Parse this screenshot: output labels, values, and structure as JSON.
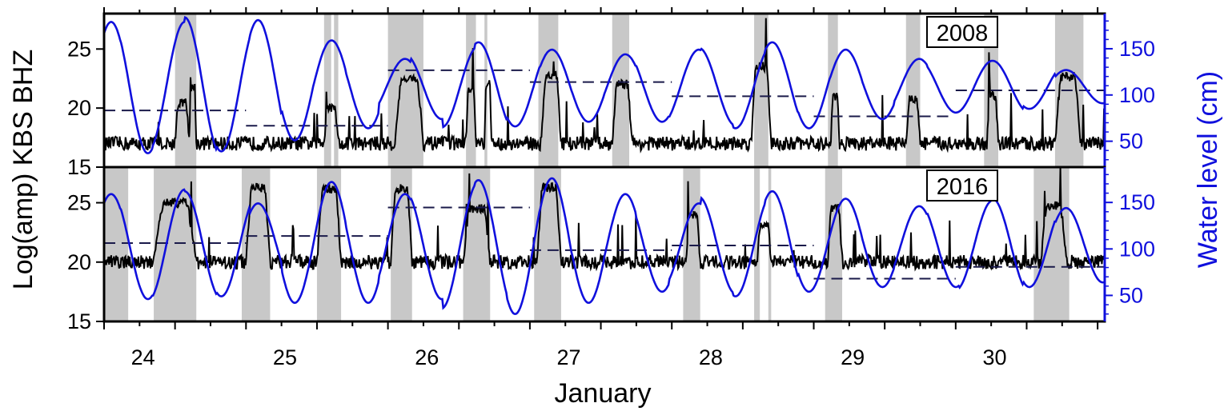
{
  "chart_data": {
    "type": "line",
    "xlabel": "January",
    "ylabel_left": "Log(amp) KBS BHZ",
    "ylabel_right": "Water level (cm)",
    "x_range": [
      23.5,
      30.55
    ],
    "x_ticks": [
      24,
      25,
      26,
      27,
      28,
      29,
      30
    ],
    "series_colors": {
      "seismic": "#000000",
      "water": "#1010dd",
      "shade": "#c8c8c8"
    },
    "panels": [
      {
        "year_label": "2008",
        "ylim_left": [
          15,
          28
        ],
        "ylim_right": [
          22,
          188
        ],
        "left_ticks": [
          15,
          20,
          25
        ],
        "right_ticks": [
          50,
          100,
          150
        ],
        "tide": {
          "mean": 109,
          "amp": [
            70,
            72,
            70,
            75,
            70,
            72,
            58,
            50,
            45,
            30,
            35,
            44,
            48,
            43,
            40,
            38,
            35,
            38,
            40,
            42,
            45,
            48,
            45,
            40,
            35,
            30,
            28,
            28,
            28,
            24,
            18
          ]
        },
        "high_tides": [
          23.55,
          24.05,
          24.6,
          25.12,
          25.66,
          26.15,
          26.66,
          27.16,
          27.66,
          28.16,
          28.68,
          29.2,
          29.72,
          30.25
        ],
        "shaded": [
          [
            24.0,
            24.15
          ],
          [
            25.05,
            25.1
          ],
          [
            25.12,
            25.15
          ],
          [
            25.5,
            25.75
          ],
          [
            26.05,
            26.12
          ],
          [
            26.18,
            26.2
          ],
          [
            26.56,
            26.7
          ],
          [
            27.08,
            27.2
          ],
          [
            28.08,
            28.18
          ],
          [
            28.6,
            28.67
          ],
          [
            29.15,
            29.25
          ],
          [
            29.7,
            29.8
          ],
          [
            30.2,
            30.4
          ]
        ],
        "events": [
          {
            "start": 24.0,
            "end": 24.1,
            "level": 20.5
          },
          {
            "start": 24.1,
            "end": 24.15,
            "level": 21.8
          },
          {
            "start": 25.05,
            "end": 25.15,
            "level": 20
          },
          {
            "start": 25.55,
            "end": 25.75,
            "level": 22.5
          },
          {
            "start": 26.05,
            "end": 26.12,
            "level": 21.5
          },
          {
            "start": 26.18,
            "end": 26.23,
            "level": 22
          },
          {
            "start": 26.58,
            "end": 26.72,
            "level": 22.7
          },
          {
            "start": 27.08,
            "end": 27.22,
            "level": 22
          },
          {
            "start": 28.06,
            "end": 28.2,
            "level": 23.5
          },
          {
            "start": 28.62,
            "end": 28.68,
            "level": 21
          },
          {
            "start": 29.15,
            "end": 29.25,
            "level": 20.7
          },
          {
            "start": 29.72,
            "end": 29.8,
            "level": 21
          },
          {
            "start": 30.2,
            "end": 30.38,
            "level": 22.6
          }
        ],
        "baseline": 17,
        "dashed_segments": [
          {
            "x": [
              23.5,
              24.5
            ],
            "y": 19.8
          },
          {
            "x": [
              24.5,
              25.5
            ],
            "y": 18.5
          },
          {
            "x": [
              25.5,
              26.5
            ],
            "y": 23.2
          },
          {
            "x": [
              26.5,
              27.5
            ],
            "y": 22.2
          },
          {
            "x": [
              27.5,
              28.5
            ],
            "y": 21
          },
          {
            "x": [
              28.5,
              29.45
            ],
            "y": 19.3
          },
          {
            "x": [
              29.5,
              30.55
            ],
            "y": 21.5
          }
        ]
      },
      {
        "year_label": "2016",
        "ylim_left": [
          15,
          28
        ],
        "ylim_right": [
          22,
          188
        ],
        "left_ticks": [
          15,
          20,
          25
        ],
        "right_ticks": [
          50,
          100,
          150
        ],
        "tide": {
          "mean": 104,
          "amp": [
            55,
            58,
            60,
            58,
            55,
            45,
            62,
            68,
            62,
            55,
            58,
            68,
            70,
            74,
            72,
            62,
            55,
            50,
            45,
            52,
            55,
            58,
            50,
            50,
            45,
            42,
            45,
            48,
            50,
            45,
            40
          ]
        },
        "high_tides": [
          23.55,
          24.05,
          24.6,
          25.12,
          25.62,
          26.12,
          26.64,
          27.16,
          27.66,
          28.16,
          28.68,
          29.2,
          29.72,
          30.25
        ],
        "shaded": [
          [
            23.5,
            23.67
          ],
          [
            23.85,
            24.15
          ],
          [
            24.47,
            24.67
          ],
          [
            25.0,
            25.17
          ],
          [
            25.52,
            25.67
          ],
          [
            26.03,
            26.22
          ],
          [
            26.53,
            26.72
          ],
          [
            27.58,
            27.7
          ],
          [
            28.08,
            28.12
          ],
          [
            28.18,
            28.2
          ],
          [
            28.58,
            28.7
          ],
          [
            30.05,
            30.3
          ]
        ],
        "events": [
          {
            "start": 23.85,
            "end": 24.15,
            "level": 25
          },
          {
            "start": 24.5,
            "end": 24.67,
            "level": 26.2
          },
          {
            "start": 25.0,
            "end": 25.17,
            "level": 26.2
          },
          {
            "start": 25.52,
            "end": 25.67,
            "level": 26.2
          },
          {
            "start": 26.03,
            "end": 26.22,
            "level": 24.5
          },
          {
            "start": 26.55,
            "end": 26.72,
            "level": 26.3
          },
          {
            "start": 27.6,
            "end": 27.7,
            "level": 24
          },
          {
            "start": 28.1,
            "end": 28.2,
            "level": 23
          },
          {
            "start": 28.6,
            "end": 28.7,
            "level": 24.5
          },
          {
            "start": 30.1,
            "end": 30.28,
            "level": 24.8
          }
        ],
        "baseline": 20,
        "dashed_segments": [
          {
            "x": [
              23.5,
              24.5
            ],
            "y": 21.6
          },
          {
            "x": [
              24.5,
              25.5
            ],
            "y": 22.2
          },
          {
            "x": [
              25.5,
              26.5
            ],
            "y": 24.6
          },
          {
            "x": [
              26.5,
              27.5
            ],
            "y": 21
          },
          {
            "x": [
              27.5,
              28.5
            ],
            "y": 21.4
          },
          {
            "x": [
              28.5,
              29.5
            ],
            "y": 18.6
          },
          {
            "x": [
              29.5,
              30.55
            ],
            "y": 19.6
          }
        ]
      }
    ]
  }
}
